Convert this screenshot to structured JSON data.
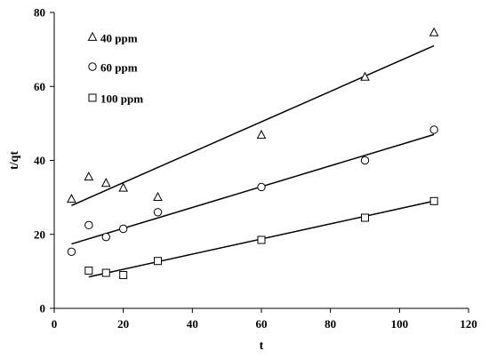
{
  "chart_data": {
    "type": "scatter",
    "xlabel": "t",
    "ylabel": "t/qt",
    "xlim": [
      0,
      120
    ],
    "ylim": [
      0,
      80
    ],
    "x_ticks": [
      0,
      20,
      40,
      60,
      80,
      100,
      120
    ],
    "y_ticks": [
      0,
      20,
      40,
      60,
      80
    ],
    "grid": false,
    "legend_position": "top-left",
    "series": [
      {
        "name": "40 ppm",
        "marker": "triangle",
        "points": [
          [
            5,
            29.5
          ],
          [
            10,
            35.5
          ],
          [
            15,
            33.8
          ],
          [
            20,
            32.5
          ],
          [
            30,
            30
          ],
          [
            60,
            46.8
          ],
          [
            90,
            62.5
          ],
          [
            110,
            74.5
          ]
        ],
        "fit": [
          [
            5,
            27.8
          ],
          [
            110,
            71
          ]
        ]
      },
      {
        "name": "60 ppm",
        "marker": "circle",
        "points": [
          [
            5,
            15.3
          ],
          [
            10,
            22.5
          ],
          [
            15,
            19.3
          ],
          [
            20,
            21.5
          ],
          [
            30,
            26
          ],
          [
            60,
            32.8
          ],
          [
            90,
            40
          ],
          [
            110,
            48.3
          ]
        ],
        "fit": [
          [
            5,
            17.4
          ],
          [
            110,
            47
          ]
        ]
      },
      {
        "name": "100 ppm",
        "marker": "square",
        "points": [
          [
            10,
            10.2
          ],
          [
            15,
            9.6
          ],
          [
            20,
            9
          ],
          [
            30,
            12.8
          ],
          [
            60,
            18.5
          ],
          [
            90,
            24.5
          ],
          [
            110,
            29
          ]
        ],
        "fit": [
          [
            10,
            8.5
          ],
          [
            110,
            29
          ]
        ]
      }
    ]
  }
}
